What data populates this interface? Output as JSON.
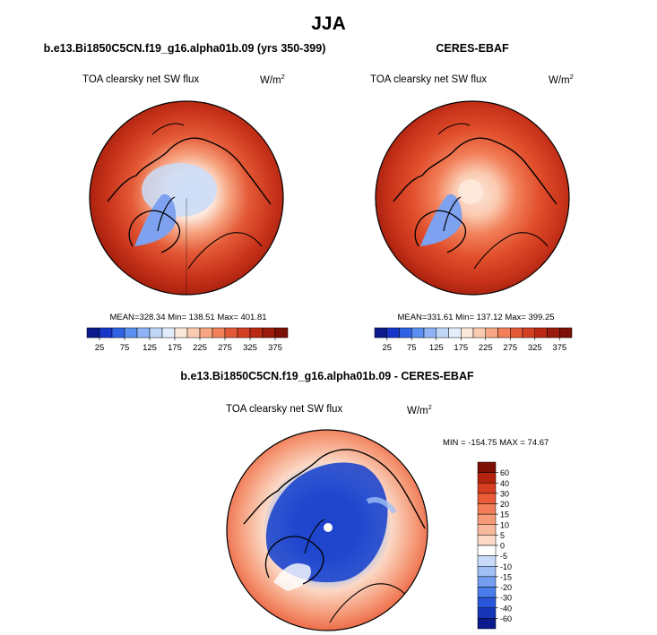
{
  "figure": {
    "season": "JJA"
  },
  "chart_data": [
    {
      "type": "heatmap",
      "projection": "north-polar-stereographic",
      "title": "b.e13.Bi1850C5CN.f19_g16.alpha01b.09 (yrs 350-399)",
      "subtitle": "TOA clearsky net SW flux",
      "units": "W/m2",
      "stats": {
        "mean": "328.34",
        "min": "138.51",
        "max": "401.81"
      },
      "colorbar_ticks": [
        "25",
        "75",
        "125",
        "175",
        "225",
        "275",
        "325",
        "375"
      ],
      "colorbar_colors": [
        "#0b1a8c",
        "#1536c9",
        "#2f62e3",
        "#5b8ff0",
        "#8fb4f6",
        "#c0d6f9",
        "#e3eefc",
        "#fde9dc",
        "#fbcbb1",
        "#f7a582",
        "#f2805a",
        "#e45a37",
        "#d33f22",
        "#bb2814",
        "#9a1a0b",
        "#7c0f06"
      ]
    },
    {
      "type": "heatmap",
      "projection": "north-polar-stereographic",
      "title": "CERES-EBAF",
      "subtitle": "TOA clearsky net SW flux",
      "units": "W/m2",
      "stats": {
        "mean": "331.61",
        "min": "137.12",
        "max": "399.25"
      },
      "colorbar_ticks": [
        "25",
        "75",
        "125",
        "175",
        "225",
        "275",
        "325",
        "375"
      ]
    },
    {
      "type": "heatmap",
      "projection": "north-polar-stereographic",
      "title": "b.e13.Bi1850C5CN.f19_g16.alpha01b.09 - CERES-EBAF",
      "subtitle": "TOA clearsky net SW flux",
      "units": "W/m2",
      "stats": {
        "min": "-154.75",
        "max": "74.67"
      },
      "colorbar_ticks": [
        "60",
        "40",
        "30",
        "20",
        "15",
        "10",
        "5",
        "0",
        "-5",
        "-10",
        "-15",
        "-20",
        "-30",
        "-40",
        "-60"
      ],
      "colorbar_colors": [
        "#7c0f06",
        "#b3230f",
        "#d63d21",
        "#ea5b38",
        "#f27d58",
        "#f59a78",
        "#f8b89c",
        "#fbd9c6",
        "#ffffff",
        "#c9dbfa",
        "#9fbff5",
        "#749ff0",
        "#4a7de8",
        "#2857dc",
        "#1536b8",
        "#0b1a8c"
      ]
    }
  ]
}
